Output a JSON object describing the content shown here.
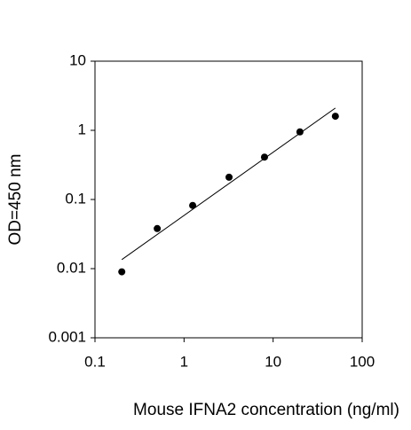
{
  "chart_data": {
    "type": "scatter",
    "x_label": "Mouse IFNA2 concentration (ng/ml)",
    "y_label": "OD=450 nm",
    "x": [
      0.2,
      0.5,
      1.25,
      3.2,
      8,
      20,
      50
    ],
    "values": [
      0.009,
      0.038,
      0.082,
      0.21,
      0.41,
      0.95,
      1.6
    ],
    "color": "#000000",
    "fit": {
      "x": [
        0.2,
        50
      ],
      "values": [
        0.0135,
        2.1
      ],
      "color": "#000000"
    },
    "x_log": true,
    "y_log": true,
    "xlim": [
      0.1,
      100
    ],
    "xticks": [
      0.1,
      1,
      10,
      100
    ],
    "ylim": [
      0.001,
      10
    ],
    "yticks": [
      0.001,
      0.01,
      0.1,
      1,
      10
    ]
  }
}
